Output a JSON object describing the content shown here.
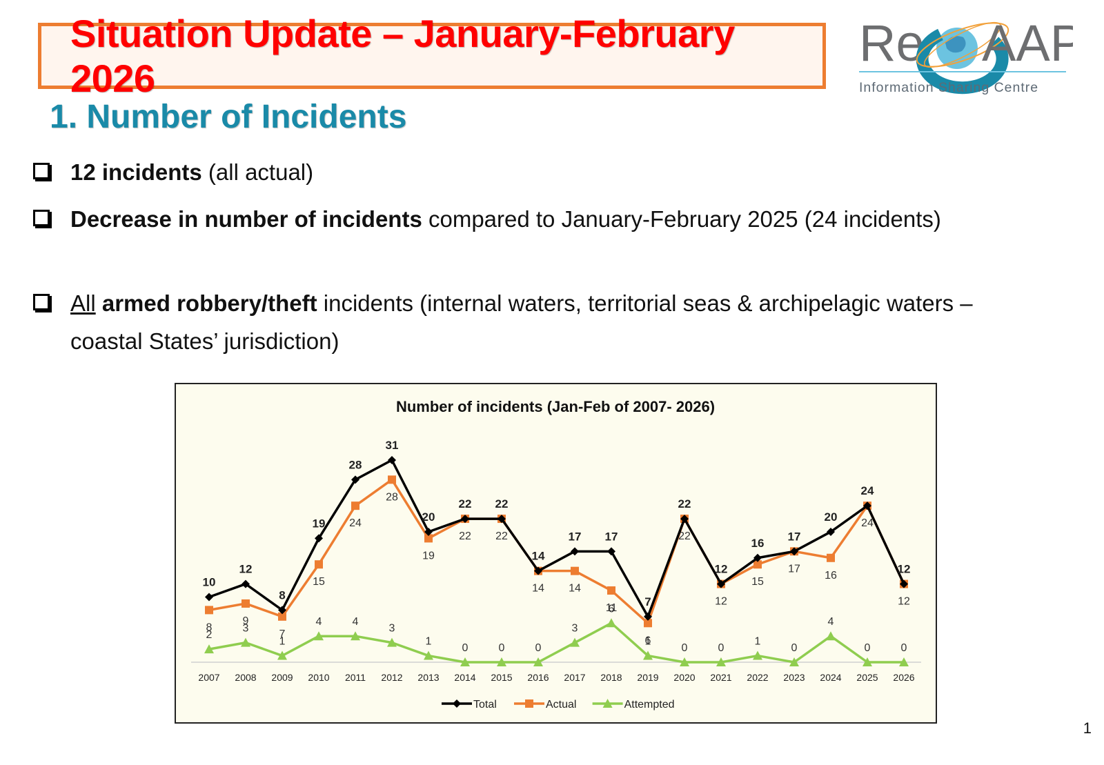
{
  "slide": {
    "title": "Situation Update – January-February 2026",
    "heading": "1. Number of Incidents",
    "page_number": "1"
  },
  "logo": {
    "text_re": "Re",
    "text_aap": "AAP",
    "tagline": "Information Sharing Centre"
  },
  "bullets": [
    {
      "bold": "12 incidents",
      "rest": " (all actual)"
    },
    {
      "bold": "Decrease in number of incidents",
      "rest": " compared to January-February 2025 (24 incidents)"
    },
    {
      "underline": "All",
      "bold": " armed robbery/theft",
      "rest": " incidents (internal waters, territorial seas & archipelagic waters – coastal States’ jurisdiction)"
    }
  ],
  "colors": {
    "total": "#000000",
    "actual": "#ed7d31",
    "attempted": "#8fcd4f",
    "title_red": "#ff0000",
    "heading_teal": "#1a8aa8"
  },
  "chart_data": {
    "type": "line",
    "title": "Number of incidents (Jan-Feb of 2007- 2026)",
    "categories": [
      "2007",
      "2008",
      "2009",
      "2010",
      "2011",
      "2012",
      "2013",
      "2014",
      "2015",
      "2016",
      "2017",
      "2018",
      "2019",
      "2020",
      "2021",
      "2022",
      "2023",
      "2024",
      "2025",
      "2026"
    ],
    "series": [
      {
        "name": "Total",
        "values": [
          10,
          12,
          8,
          19,
          28,
          31,
          20,
          22,
          22,
          14,
          17,
          17,
          7,
          22,
          12,
          16,
          17,
          20,
          24,
          12
        ]
      },
      {
        "name": "Actual",
        "values": [
          8,
          9,
          7,
          15,
          24,
          28,
          19,
          22,
          22,
          14,
          14,
          11,
          6,
          22,
          12,
          15,
          17,
          16,
          24,
          12
        ]
      },
      {
        "name": "Attempted",
        "values": [
          2,
          3,
          1,
          4,
          4,
          3,
          1,
          0,
          0,
          0,
          3,
          6,
          1,
          0,
          0,
          1,
          0,
          4,
          0,
          0
        ]
      }
    ],
    "ylim": [
      0,
      31
    ],
    "legend": "bottom",
    "grid": false
  }
}
